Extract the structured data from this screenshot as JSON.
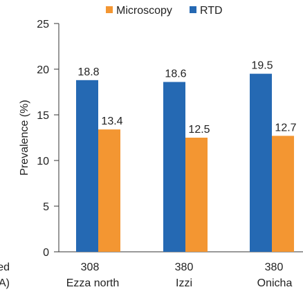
{
  "chart_data": {
    "type": "bar",
    "title": "",
    "ylabel": "Prevalence (%)",
    "ylim": [
      0,
      25
    ],
    "yticks": [
      0,
      5,
      10,
      15,
      20,
      25
    ],
    "categories": [
      "Ezza north",
      "Izzi",
      "Onicha"
    ],
    "examined_counts": [
      "308",
      "380",
      "380"
    ],
    "row_labels": [
      "ned",
      "A)"
    ],
    "series": [
      {
        "name": "RTD",
        "color": "#2569b3",
        "values": [
          18.8,
          18.6,
          19.5
        ],
        "labels": [
          "18.8",
          "18.6",
          "19.5"
        ]
      },
      {
        "name": "Microscopy",
        "color": "#f39632",
        "values": [
          13.4,
          12.5,
          12.7
        ],
        "labels": [
          "13.4",
          "12.5",
          "12.7"
        ]
      }
    ],
    "legend": {
      "placement": "top",
      "order": [
        "Microscopy",
        "RTD"
      ]
    },
    "grid": false
  }
}
